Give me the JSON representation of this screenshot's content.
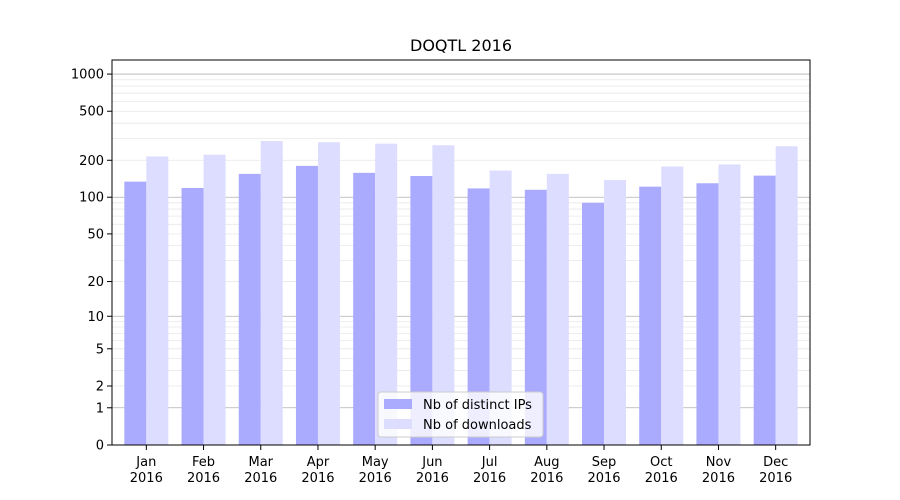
{
  "chart_data": {
    "type": "bar",
    "title": "DOQTL 2016",
    "yscale": "symlog",
    "ylim": [
      0,
      1300
    ],
    "ytick_values": [
      0,
      1,
      2,
      5,
      10,
      20,
      50,
      100,
      200,
      500,
      1000
    ],
    "ytick_labels": [
      "0",
      "1",
      "2",
      "5",
      "10",
      "20",
      "50",
      "100",
      "200",
      "500",
      "1000"
    ],
    "categories": [
      [
        "Jan",
        "2016"
      ],
      [
        "Feb",
        "2016"
      ],
      [
        "Mar",
        "2016"
      ],
      [
        "Apr",
        "2016"
      ],
      [
        "May",
        "2016"
      ],
      [
        "Jun",
        "2016"
      ],
      [
        "Jul",
        "2016"
      ],
      [
        "Aug",
        "2016"
      ],
      [
        "Sep",
        "2016"
      ],
      [
        "Oct",
        "2016"
      ],
      [
        "Nov",
        "2016"
      ],
      [
        "Dec",
        "2016"
      ]
    ],
    "series": [
      {
        "name": "Nb of distinct IPs",
        "color": "#aaaaff",
        "values": [
          134,
          119,
          155,
          180,
          158,
          149,
          118,
          115,
          90,
          122,
          130,
          150
        ]
      },
      {
        "name": "Nb of downloads",
        "color": "#ddddff",
        "values": [
          215,
          222,
          287,
          280,
          273,
          265,
          165,
          155,
          138,
          178,
          185,
          260
        ]
      }
    ],
    "legend": {
      "position": "lower center"
    },
    "grid": true
  }
}
